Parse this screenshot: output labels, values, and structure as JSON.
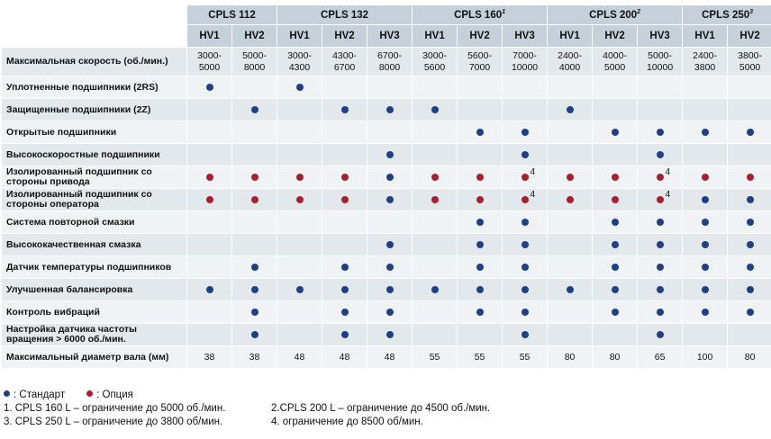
{
  "colors": {
    "standard": "#1f3f86",
    "option": "#a8202c",
    "header": "#c5d0da",
    "row_odd": "#e3e8ec",
    "row_even": "#f0f3f5"
  },
  "models": [
    {
      "name": "CPLS 112",
      "sup": "",
      "span": 2
    },
    {
      "name": "CPLS 132",
      "sup": "",
      "span": 3
    },
    {
      "name": "CPLS 160",
      "sup": "1",
      "span": 3
    },
    {
      "name": "CPLS 200",
      "sup": "2",
      "span": 3
    },
    {
      "name": "CPLS 250",
      "sup": "3",
      "span": 2
    }
  ],
  "variants": [
    "HV1",
    "HV2",
    "HV1",
    "HV2",
    "HV3",
    "HV1",
    "HV2",
    "HV3",
    "HV1",
    "HV2",
    "HV3",
    "HV1",
    "HV2"
  ],
  "speed_row": {
    "label": "Максимальная скорость (об./мин.)",
    "values": [
      "3000-\n5000",
      "5000-\n8000",
      "3000-\n4300",
      "4300-\n6700",
      "6700-\n8000",
      "3000-\n5600",
      "5600-\n7000",
      "7000-\n10000",
      "2400-\n4000",
      "4000-\n5000",
      "5000-\n10000",
      "2400-\n3800",
      "3800-\n5000"
    ]
  },
  "rows": [
    {
      "label": "Уплотненные подшипники (2RS)",
      "cells": [
        "S",
        "",
        "S",
        "",
        "",
        "",
        "",
        "",
        "",
        "",
        "",
        "",
        ""
      ]
    },
    {
      "label": "Защищенные подшипники (2Z)",
      "cells": [
        "",
        "S",
        "",
        "S",
        "S",
        "S",
        "",
        "",
        "S",
        "",
        "",
        "",
        ""
      ]
    },
    {
      "label": "Открытые подшипники",
      "cells": [
        "",
        "",
        "",
        "",
        "",
        "",
        "S",
        "S",
        "",
        "S",
        "S",
        "S",
        "S"
      ]
    },
    {
      "label": "Высокоскоростные подшипники",
      "cells": [
        "",
        "",
        "",
        "",
        "S",
        "",
        "",
        "S",
        "",
        "",
        "S",
        "",
        ""
      ]
    },
    {
      "label": "Изолированный подшипник со стороны привода",
      "cells": [
        "O",
        "O",
        "O",
        "O",
        "S",
        "O",
        "O",
        "O4",
        "O",
        "O",
        "O4",
        "O",
        "O"
      ]
    },
    {
      "label": "Изолированный подшипник со стороны оператора",
      "cells": [
        "O",
        "O",
        "O",
        "O",
        "S",
        "O",
        "O",
        "O4",
        "O",
        "O",
        "O4",
        "S",
        "S"
      ]
    },
    {
      "label": "Система повторной смазки",
      "cells": [
        "",
        "",
        "",
        "",
        "",
        "",
        "S",
        "S",
        "",
        "S",
        "S",
        "S",
        "S"
      ]
    },
    {
      "label": "Высококачественная смазка",
      "cells": [
        "",
        "",
        "",
        "",
        "S",
        "",
        "S",
        "S",
        "",
        "S",
        "S",
        "S",
        "S"
      ]
    },
    {
      "label": "Датчик температуры подшипников",
      "cells": [
        "",
        "S",
        "",
        "S",
        "S",
        "",
        "S",
        "S",
        "",
        "S",
        "S",
        "S",
        "S"
      ]
    },
    {
      "label": "Улучшенная балансировка",
      "cells": [
        "S",
        "S",
        "S",
        "S",
        "S",
        "S",
        "S",
        "S",
        "S",
        "S",
        "S",
        "S",
        "S"
      ]
    },
    {
      "label": "Контроль вибраций",
      "cells": [
        "",
        "S",
        "",
        "S",
        "S",
        "",
        "S",
        "S",
        "",
        "S",
        "S",
        "S",
        "S"
      ]
    },
    {
      "label": "Настройка датчика частоты вращения > 6000 об./мин.",
      "cells": [
        "",
        "S",
        "",
        "S",
        "S",
        "",
        "",
        "S",
        "",
        "",
        "S",
        "",
        ""
      ]
    }
  ],
  "shaft_row": {
    "label": "Максимальный диаметр вала (мм)",
    "values": [
      "38",
      "38",
      "48",
      "48",
      "48",
      "55",
      "55",
      "55",
      "80",
      "80",
      "65",
      "100",
      "80"
    ]
  },
  "legend": {
    "standard_label": ": Стандарт",
    "option_label": ": Опция",
    "notes": [
      "1. CPLS 160 L – ограничение до 5000 об./мин.",
      "2.CPLS 200 L – ограничение до 4500 об./мин.",
      "3. CPLS 250 L – ограничение до 3800 об/мин.",
      "4. ограничение до 8500 об/мин."
    ]
  }
}
